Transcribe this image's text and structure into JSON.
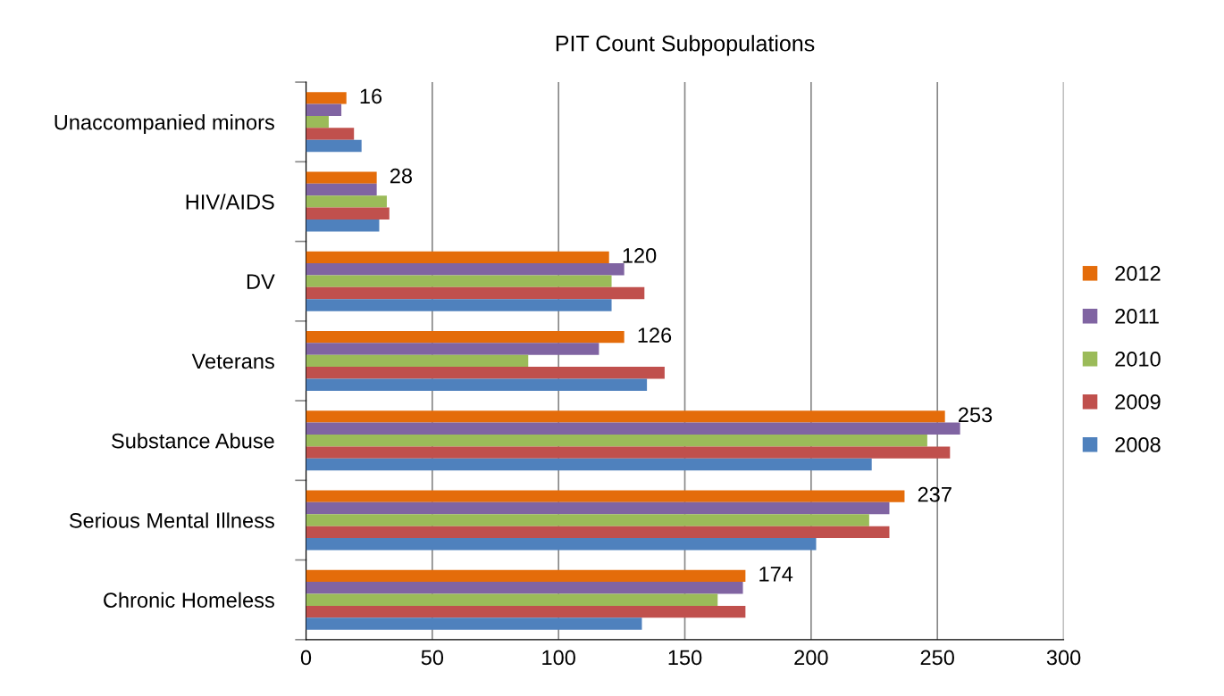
{
  "chart_data": {
    "type": "bar",
    "orientation": "horizontal",
    "title": "PIT Count Subpopulations",
    "categories": [
      "Unaccompanied minors",
      "HIV/AIDS",
      "DV",
      "Veterans",
      "Substance Abuse",
      "Serious Mental Illness",
      "Chronic Homeless"
    ],
    "series": [
      {
        "name": "2012",
        "color": "#e46c0a",
        "values": [
          16,
          28,
          120,
          126,
          253,
          237,
          174
        ],
        "value_labels": [
          "16",
          "28",
          "120",
          "126",
          "253",
          "237",
          "174"
        ]
      },
      {
        "name": "2011",
        "color": "#8064a2",
        "values": [
          14,
          28,
          126,
          116,
          259,
          231,
          173
        ]
      },
      {
        "name": "2010",
        "color": "#9bbb59",
        "values": [
          9,
          32,
          121,
          88,
          246,
          223,
          163
        ]
      },
      {
        "name": "2009",
        "color": "#c0504d",
        "values": [
          19,
          33,
          134,
          142,
          255,
          231,
          174
        ]
      },
      {
        "name": "2008",
        "color": "#4f81bd",
        "values": [
          22,
          29,
          121,
          135,
          224,
          202,
          133
        ]
      }
    ],
    "xlim": [
      0,
      300
    ],
    "xticks": [
      0,
      50,
      100,
      150,
      200,
      250,
      300
    ],
    "grid": "x",
    "legend": "right"
  }
}
